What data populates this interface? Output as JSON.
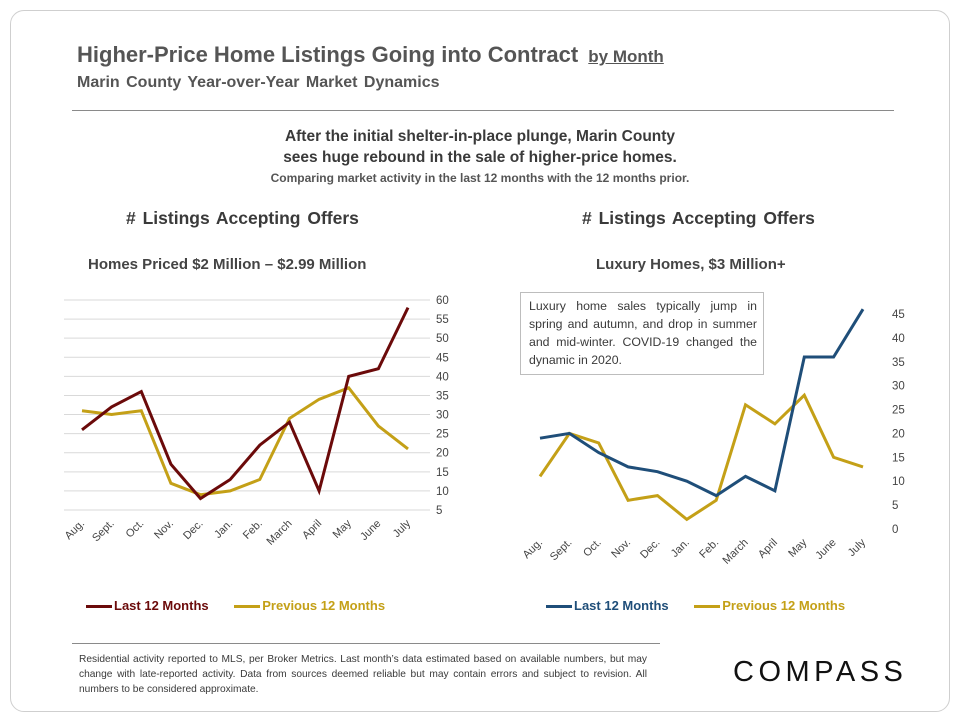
{
  "header": {
    "title": "Higher-Price Home Listings Going into Contract",
    "title_suffix": "by Month",
    "subtitle": "Marin County Year-over-Year Market Dynamics"
  },
  "intro": {
    "line1": "After the initial shelter-in-place plunge, Marin County",
    "line2": "sees huge rebound in the sale of higher-price homes.",
    "line3": "Comparing market activity in the last 12 months with the 12 months prior."
  },
  "chart_data": [
    {
      "type": "line",
      "title": "# Listings Accepting Offers",
      "subtitle": "Homes Priced $2 Million – $2.99 Million",
      "categories": [
        "Aug.",
        "Sept.",
        "Oct.",
        "Nov.",
        "Dec.",
        "Jan.",
        "Feb.",
        "March",
        "April",
        "May",
        "June",
        "July"
      ],
      "series": [
        {
          "name": "Last 12 Months",
          "color": "#6b0a0a",
          "values": [
            26,
            32,
            36,
            17,
            8,
            13,
            22,
            28,
            10,
            40,
            42,
            58
          ]
        },
        {
          "name": "Previous 12 Months",
          "color": "#c4a017",
          "values": [
            31,
            30,
            31,
            12,
            9,
            10,
            13,
            29,
            34,
            37,
            27,
            21
          ]
        }
      ],
      "yticks": [
        5,
        10,
        15,
        20,
        25,
        30,
        35,
        40,
        45,
        50,
        55,
        60
      ],
      "ylim": [
        5,
        60
      ],
      "y_axis_position": "right",
      "grid": true,
      "legend": "bottom"
    },
    {
      "type": "line",
      "title": "# Listings Accepting Offers",
      "subtitle": "Luxury Homes, $3 Million+",
      "categories": [
        "Aug.",
        "Sept.",
        "Oct.",
        "Nov.",
        "Dec.",
        "Jan.",
        "Feb.",
        "March",
        "April",
        "May",
        "June",
        "July"
      ],
      "series": [
        {
          "name": "Last 12 Months",
          "color": "#1f4e79",
          "values": [
            19,
            20,
            16,
            13,
            12,
            10,
            7,
            11,
            8,
            36,
            36,
            46
          ]
        },
        {
          "name": "Previous 12 Months",
          "color": "#c4a017",
          "values": [
            11,
            20,
            18,
            6,
            7,
            2,
            6,
            26,
            22,
            28,
            15,
            13
          ]
        }
      ],
      "yticks": [
        0,
        5,
        10,
        15,
        20,
        25,
        30,
        35,
        40,
        45
      ],
      "ylim": [
        0,
        45
      ],
      "y_axis_position": "right",
      "grid": false,
      "legend": "bottom",
      "annotation": "Luxury home sales typically jump in spring and autumn, and drop in summer and mid-winter. COVID-19 changed the dynamic in 2020."
    }
  ],
  "footer": {
    "text": "Residential activity reported to MLS, per Broker Metrics. Last month’s data estimated based on available numbers, but may change with late-reported activity. Data from sources deemed reliable but may contain errors and subject to revision. All numbers to be considered approximate."
  },
  "logo": {
    "text": "COMPASS"
  }
}
